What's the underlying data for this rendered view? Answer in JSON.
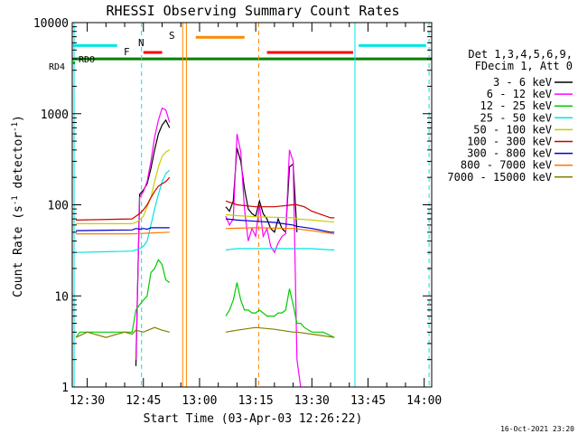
{
  "chart_data": {
    "type": "line",
    "title": "RHESSI Observing Summary Count Rates",
    "xlabel": "Start Time (03-Apr-03 12:26:22)",
    "ylabel_main": "Count Rate (s",
    "ylabel_sup1": "-1",
    "ylabel_mid": " detector",
    "ylabel_sup2": "-1",
    "ylabel_end": ")",
    "yscale": "log",
    "ylim": [
      1,
      10000
    ],
    "xlim_minutes": [
      26,
      122
    ],
    "x_tick_labels": [
      {
        "label": "12:30",
        "t": 30
      },
      {
        "label": "12:45",
        "t": 45
      },
      {
        "label": "13:00",
        "t": 60
      },
      {
        "label": "13:15",
        "t": 75
      },
      {
        "label": "13:30",
        "t": 90
      },
      {
        "label": "13:45",
        "t": 105
      },
      {
        "label": "14:00",
        "t": 120
      }
    ],
    "y_tick_labels": [
      {
        "label": "10000",
        "v": 10000
      },
      {
        "label": "1000",
        "v": 1000
      },
      {
        "label": "100",
        "v": 100
      },
      {
        "label": "10",
        "v": 10
      },
      {
        "label": "1",
        "v": 1
      }
    ],
    "legend_title_1": "Det 1,3,4,5,6,9,",
    "legend_title_2": "FDecim 1, Att 0",
    "series": [
      {
        "name": "3 - 6 keV",
        "color": "#000000",
        "points": [
          [
            42,
            null
          ],
          [
            43,
            1.7
          ],
          [
            44,
            130
          ],
          [
            45,
            145
          ],
          [
            46,
            170
          ],
          [
            47,
            250
          ],
          [
            48,
            400
          ],
          [
            49,
            600
          ],
          [
            50,
            750
          ],
          [
            51,
            850
          ],
          [
            52,
            700
          ],
          [
            53,
            null
          ],
          [
            66,
            null
          ],
          [
            67,
            95
          ],
          [
            68,
            85
          ],
          [
            69,
            110
          ],
          [
            70,
            420
          ],
          [
            71,
            300
          ],
          [
            72,
            150
          ],
          [
            73,
            90
          ],
          [
            74,
            80
          ],
          [
            75,
            75
          ],
          [
            76,
            110
          ],
          [
            77,
            80
          ],
          [
            78,
            70
          ],
          [
            79,
            55
          ],
          [
            80,
            50
          ],
          [
            81,
            70
          ],
          [
            82,
            55
          ],
          [
            83,
            50
          ],
          [
            84,
            260
          ],
          [
            85,
            280
          ],
          [
            86,
            50
          ],
          [
            87,
            null
          ]
        ]
      },
      {
        "name": "6 - 12 keV",
        "color": "#ff00ff",
        "points": [
          [
            42,
            null
          ],
          [
            43,
            2
          ],
          [
            44,
            120
          ],
          [
            45,
            140
          ],
          [
            46,
            180
          ],
          [
            47,
            300
          ],
          [
            48,
            550
          ],
          [
            49,
            850
          ],
          [
            50,
            1150
          ],
          [
            51,
            1100
          ],
          [
            52,
            800
          ],
          [
            53,
            null
          ],
          [
            66,
            null
          ],
          [
            67,
            75
          ],
          [
            68,
            60
          ],
          [
            69,
            70
          ],
          [
            70,
            600
          ],
          [
            71,
            380
          ],
          [
            72,
            90
          ],
          [
            73,
            40
          ],
          [
            74,
            55
          ],
          [
            75,
            45
          ],
          [
            76,
            100
          ],
          [
            77,
            45
          ],
          [
            78,
            55
          ],
          [
            79,
            35
          ],
          [
            80,
            30
          ],
          [
            81,
            38
          ],
          [
            82,
            45
          ],
          [
            83,
            48
          ],
          [
            84,
            400
          ],
          [
            85,
            300
          ],
          [
            86,
            2
          ],
          [
            87,
            1
          ],
          [
            88,
            null
          ]
        ]
      },
      {
        "name": "12 - 25 keV",
        "color": "#00cc00",
        "points": [
          [
            27,
            3.5
          ],
          [
            28,
            4
          ],
          [
            42,
            4
          ],
          [
            43,
            7
          ],
          [
            44,
            8
          ],
          [
            45,
            9
          ],
          [
            46,
            10
          ],
          [
            47,
            18
          ],
          [
            48,
            20
          ],
          [
            49,
            25
          ],
          [
            50,
            22
          ],
          [
            51,
            15
          ],
          [
            52,
            14
          ],
          [
            53,
            null
          ],
          [
            66,
            null
          ],
          [
            67,
            6
          ],
          [
            68,
            7
          ],
          [
            69,
            9
          ],
          [
            70,
            14
          ],
          [
            71,
            9
          ],
          [
            72,
            7
          ],
          [
            73,
            7
          ],
          [
            74,
            6.5
          ],
          [
            75,
            6.5
          ],
          [
            76,
            7
          ],
          [
            77,
            6.5
          ],
          [
            78,
            6
          ],
          [
            79,
            6
          ],
          [
            80,
            6
          ],
          [
            81,
            6.5
          ],
          [
            82,
            6.5
          ],
          [
            83,
            7
          ],
          [
            84,
            12
          ],
          [
            85,
            8
          ],
          [
            86,
            5
          ],
          [
            87,
            5
          ],
          [
            88,
            4.5
          ],
          [
            90,
            4
          ],
          [
            93,
            4
          ],
          [
            96,
            3.5
          ]
        ]
      },
      {
        "name": "25 - 50 keV",
        "color": "#00e5e5",
        "points": [
          [
            27,
            30
          ],
          [
            42,
            31
          ],
          [
            43,
            32
          ],
          [
            44,
            33
          ],
          [
            45,
            35
          ],
          [
            46,
            40
          ],
          [
            47,
            60
          ],
          [
            48,
            90
          ],
          [
            49,
            130
          ],
          [
            50,
            180
          ],
          [
            51,
            220
          ],
          [
            52,
            240
          ],
          [
            53,
            null
          ],
          [
            66,
            null
          ],
          [
            67,
            32
          ],
          [
            70,
            33
          ],
          [
            75,
            33
          ],
          [
            80,
            33
          ],
          [
            85,
            33
          ],
          [
            86,
            33
          ],
          [
            90,
            33
          ],
          [
            95,
            32
          ],
          [
            96,
            32
          ]
        ]
      },
      {
        "name": "50 - 100 keV",
        "color": "#cccc00",
        "points": [
          [
            27,
            62
          ],
          [
            42,
            62
          ],
          [
            43,
            64
          ],
          [
            44,
            68
          ],
          [
            45,
            75
          ],
          [
            46,
            95
          ],
          [
            47,
            120
          ],
          [
            48,
            180
          ],
          [
            49,
            260
          ],
          [
            50,
            340
          ],
          [
            51,
            380
          ],
          [
            52,
            400
          ],
          [
            53,
            null
          ],
          [
            66,
            null
          ],
          [
            67,
            78
          ],
          [
            70,
            76
          ],
          [
            75,
            74
          ],
          [
            80,
            73
          ],
          [
            85,
            72
          ],
          [
            86,
            70
          ],
          [
            90,
            68
          ],
          [
            95,
            65
          ],
          [
            96,
            65
          ]
        ]
      },
      {
        "name": "100 - 300 keV",
        "color": "#cc0000",
        "points": [
          [
            27,
            68
          ],
          [
            42,
            70
          ],
          [
            43,
            75
          ],
          [
            44,
            80
          ],
          [
            45,
            88
          ],
          [
            46,
            100
          ],
          [
            47,
            120
          ],
          [
            48,
            140
          ],
          [
            49,
            160
          ],
          [
            50,
            170
          ],
          [
            51,
            180
          ],
          [
            52,
            200
          ],
          [
            53,
            null
          ],
          [
            66,
            null
          ],
          [
            67,
            110
          ],
          [
            70,
            100
          ],
          [
            75,
            95
          ],
          [
            80,
            95
          ],
          [
            85,
            100
          ],
          [
            86,
            100
          ],
          [
            88,
            95
          ],
          [
            90,
            85
          ],
          [
            95,
            72
          ],
          [
            96,
            72
          ]
        ]
      },
      {
        "name": "300 - 800 keV",
        "color": "#0000cc",
        "points": [
          [
            27,
            52
          ],
          [
            42,
            53
          ],
          [
            43,
            55
          ],
          [
            44,
            54
          ],
          [
            45,
            55
          ],
          [
            46,
            54
          ],
          [
            47,
            56
          ],
          [
            52,
            56
          ],
          [
            53,
            null
          ],
          [
            66,
            null
          ],
          [
            67,
            70
          ],
          [
            70,
            68
          ],
          [
            75,
            66
          ],
          [
            80,
            64
          ],
          [
            85,
            60
          ],
          [
            86,
            58
          ],
          [
            90,
            55
          ],
          [
            95,
            50
          ],
          [
            96,
            50
          ]
        ]
      },
      {
        "name": "800 - 7000 keV",
        "color": "#ff7700",
        "points": [
          [
            27,
            48
          ],
          [
            42,
            48
          ],
          [
            52,
            50
          ],
          [
            53,
            null
          ],
          [
            66,
            null
          ],
          [
            67,
            55
          ],
          [
            75,
            56
          ],
          [
            85,
            55
          ],
          [
            90,
            52
          ],
          [
            96,
            48
          ]
        ]
      },
      {
        "name": "7000 - 15000 keV",
        "color": "#808000",
        "points": [
          [
            27,
            3.5
          ],
          [
            30,
            4
          ],
          [
            35,
            3.5
          ],
          [
            40,
            4
          ],
          [
            42,
            3.8
          ],
          [
            43,
            4.2
          ],
          [
            45,
            4
          ],
          [
            48,
            4.5
          ],
          [
            50,
            4.2
          ],
          [
            52,
            4
          ],
          [
            53,
            null
          ],
          [
            66,
            null
          ],
          [
            67,
            4
          ],
          [
            70,
            4.2
          ],
          [
            75,
            4.5
          ],
          [
            80,
            4.3
          ],
          [
            85,
            4
          ],
          [
            86,
            4
          ],
          [
            90,
            3.8
          ],
          [
            96,
            3.5
          ]
        ]
      }
    ],
    "annotations": [
      {
        "label": "N",
        "color": "#00e5e5",
        "kind": "flag"
      },
      {
        "label": "F",
        "color": "#ff0000",
        "kind": "flag"
      },
      {
        "label": "S",
        "color": "#ff8800",
        "kind": "flag"
      },
      {
        "label": "RDO",
        "color": "#00aa00",
        "kind": "flag"
      },
      {
        "label": "RD4",
        "color": "#00aa00",
        "kind": "flag"
      }
    ],
    "flag_bars": [
      {
        "name": "night",
        "color": "#00e5e5",
        "t0": 26.2,
        "t1": 38,
        "v": 5600
      },
      {
        "name": "night",
        "color": "#00e5e5",
        "t0": 102.5,
        "t1": 120.5,
        "v": 5600
      },
      {
        "name": "flare",
        "color": "#ff0000",
        "t0": 45,
        "t1": 50,
        "v": 4700
      },
      {
        "name": "flare",
        "color": "#ff0000",
        "t0": 78,
        "t1": 101,
        "v": 4700
      },
      {
        "name": "saa",
        "color": "#ff8800",
        "t0": 59,
        "t1": 72,
        "v": 6900
      },
      {
        "name": "decimation",
        "color": "#008000",
        "t0": 26,
        "t1": 122,
        "v": 4000
      }
    ],
    "vertical_lines": [
      {
        "t": 26.5,
        "color": "#00e5e5",
        "style": "solid"
      },
      {
        "t": 44.5,
        "color": "#00e5e5",
        "style": "dashed"
      },
      {
        "t": 55.5,
        "color": "#ff8800",
        "style": "solid"
      },
      {
        "t": 56.5,
        "color": "#ff8800",
        "style": "solid"
      },
      {
        "t": 75.8,
        "color": "#ff8800",
        "style": "dashed"
      },
      {
        "t": 101.5,
        "color": "#00e5e5",
        "style": "solid"
      },
      {
        "t": 121.3,
        "color": "#00e5e5",
        "style": "dashed"
      }
    ],
    "footer_date": "16-Oct-2021 23:20"
  }
}
